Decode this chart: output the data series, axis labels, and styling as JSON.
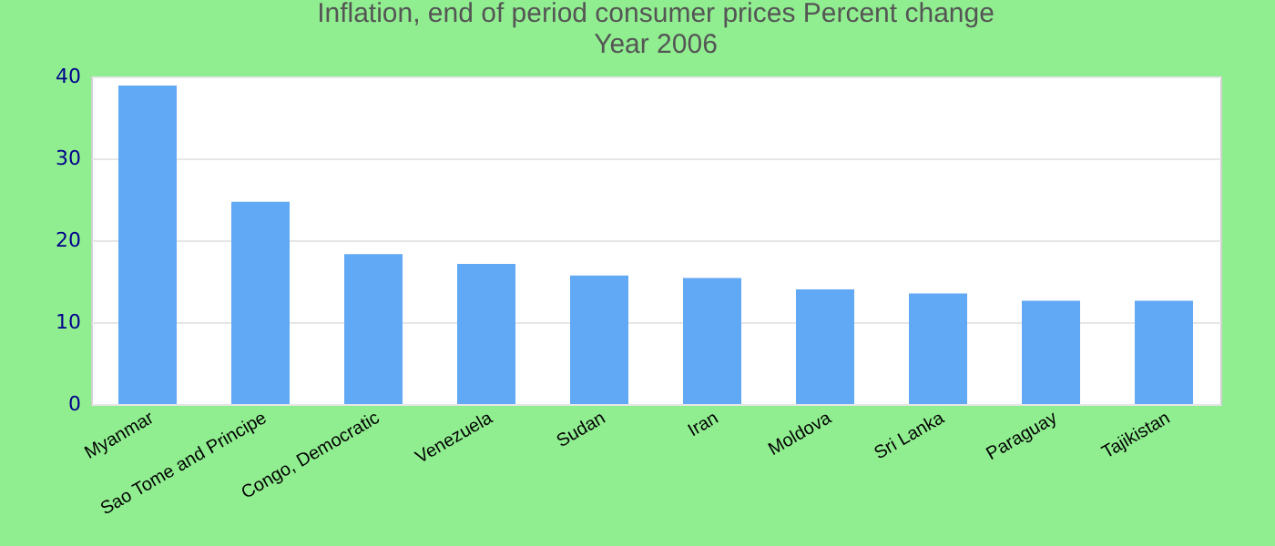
{
  "chart_data": {
    "type": "bar",
    "title": "Inflation, end of period consumer prices  Percent change",
    "subtitle": "Year 2006",
    "categories": [
      "Myanmar",
      "Sao Tome and Principe",
      "Congo, Democratic",
      "Venezuela",
      "Sudan",
      "Iran",
      "Moldova",
      "Sri Lanka",
      "Paraguay",
      "Tajikistan"
    ],
    "values": [
      38.9,
      24.7,
      18.3,
      17.1,
      15.7,
      15.4,
      14.0,
      13.5,
      12.6,
      12.6
    ],
    "color": "#61a8f5",
    "ylim": [
      0,
      40
    ],
    "yticks": [
      0,
      10,
      20,
      30,
      40
    ],
    "grid": "y"
  }
}
